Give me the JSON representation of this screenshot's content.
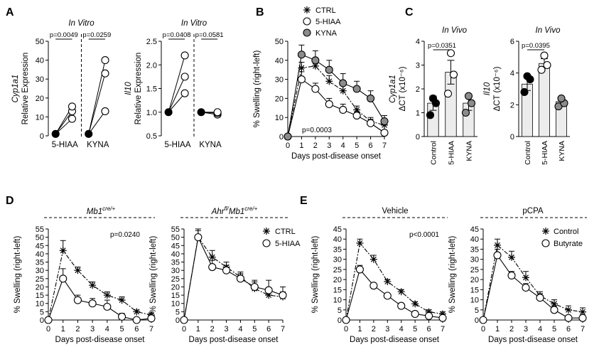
{
  "panel_letters": {
    "A": "A",
    "B": "B",
    "C": "C",
    "D": "D",
    "E": "E"
  },
  "chart_data": [
    {
      "id": "A1",
      "type": "scatter",
      "subtype": "paired-lines",
      "title": "In Vitro",
      "ylabel_italic": "Cyp1a1",
      "ylabel": "Relative Expression",
      "ylim": [
        0,
        50
      ],
      "yticks": [
        0,
        10,
        20,
        30,
        40,
        50
      ],
      "categories": [
        "5-HIAA",
        "KYNA"
      ],
      "groups": [
        {
          "category": "5-HIAA",
          "p": "p=0.0049",
          "before": [
            1,
            1,
            1
          ],
          "after": [
            9,
            13,
            15.5
          ]
        },
        {
          "category": "KYNA",
          "p": "p=0.0259",
          "before": [
            1,
            1,
            1
          ],
          "after": [
            13,
            33,
            40
          ]
        }
      ],
      "divider": "dashed"
    },
    {
      "id": "A2",
      "type": "scatter",
      "subtype": "paired-lines",
      "title": "In Vitro",
      "ylabel_italic": "Il10",
      "ylabel": "Relative Expression",
      "ylim": [
        0.5,
        2.5
      ],
      "yticks": [
        0.5,
        1.0,
        1.5,
        2.0,
        2.5
      ],
      "ytick_labels": [
        "0.5",
        "1.0",
        "1.5",
        "2.0",
        "2.5"
      ],
      "categories": [
        "5-HIAA",
        "KYNA"
      ],
      "groups": [
        {
          "category": "5-HIAA",
          "p": "p=0.0408",
          "before": [
            1,
            1,
            1
          ],
          "after": [
            1.4,
            1.75,
            2.2
          ]
        },
        {
          "category": "KYNA",
          "p": "p=0.0581",
          "before": [
            1,
            1,
            1
          ],
          "after": [
            0.95,
            0.98,
            1.0
          ]
        }
      ],
      "divider": "dashed"
    },
    {
      "id": "B",
      "type": "line",
      "xlabel": "Days post-disease onset",
      "ylabel": "% Swelling (right-left)",
      "xlim": [
        0,
        7
      ],
      "ylim": [
        0,
        50
      ],
      "xticks": [
        0,
        1,
        2,
        3,
        4,
        5,
        6,
        7
      ],
      "yticks": [
        0,
        10,
        20,
        30,
        40,
        50
      ],
      "annotation": "p=0.0003",
      "legend": [
        "CTRL",
        "5-HIAA",
        "KYNA"
      ],
      "legend_position": "top-right",
      "series": [
        {
          "name": "CTRL",
          "marker": "asterisk",
          "line": "dashed",
          "values": [
            0,
            36,
            37,
            29,
            24,
            14,
            8,
            6
          ],
          "err": [
            0,
            3,
            3,
            3,
            3,
            2,
            2,
            1
          ]
        },
        {
          "name": "5-HIAA",
          "marker": "open-circle",
          "line": "solid",
          "values": [
            0,
            30,
            25,
            17,
            14,
            11,
            7,
            2
          ],
          "err": [
            0,
            4,
            3,
            3,
            3,
            2,
            2,
            1
          ]
        },
        {
          "name": "KYNA",
          "marker": "grey-circle",
          "line": "solid",
          "values": [
            0,
            43,
            40,
            35,
            28,
            25,
            20,
            8
          ],
          "err": [
            0,
            5,
            5,
            5,
            5,
            4,
            4,
            3
          ]
        }
      ]
    },
    {
      "id": "C1",
      "type": "bar",
      "title": "In Vivo",
      "ylabel_italic": "Cyp1a1",
      "ylabel": "ΔCT (x10⁻⁶)",
      "ylim": [
        0,
        4
      ],
      "yticks": [
        0,
        1,
        2,
        3,
        4
      ],
      "categories": [
        "Control",
        "5-HIAA",
        "KYNA"
      ],
      "values": [
        1.4,
        2.7,
        1.4
      ],
      "err": [
        0.3,
        0.5,
        0.3
      ],
      "points": [
        [
          0.9,
          1.4,
          1.6
        ],
        [
          1.8,
          2.6,
          3.5
        ],
        [
          1.0,
          1.4,
          1.7
        ]
      ],
      "point_style": [
        "filled",
        "open",
        "grey"
      ],
      "bracket": {
        "from": "Control",
        "to": "5-HIAA",
        "p": "p=0.0351"
      }
    },
    {
      "id": "C2",
      "type": "bar",
      "title": "In Vivo",
      "ylabel_italic": "Il10",
      "ylabel": "ΔCT (x10⁻⁶)",
      "ylim": [
        0,
        6
      ],
      "yticks": [
        0,
        2,
        4,
        6
      ],
      "categories": [
        "Control",
        "5-HIAA",
        "KYNA"
      ],
      "values": [
        3.3,
        4.6,
        2.2
      ],
      "err": [
        0.4,
        0.3,
        0.2
      ],
      "points": [
        [
          2.8,
          3.6,
          3.8
        ],
        [
          4.2,
          4.5,
          5.1
        ],
        [
          1.9,
          2.1,
          2.4
        ]
      ],
      "point_style": [
        "filled",
        "open",
        "grey"
      ],
      "bracket": {
        "from": "Control",
        "to": "5-HIAA",
        "p": "p=0.0395"
      }
    },
    {
      "id": "D1",
      "type": "line",
      "header_base": "Mb1",
      "header_sup": "cre/+",
      "xlabel": "Days post-disease onset",
      "ylabel": "% Swelling (right-left)",
      "xlim": [
        0,
        7
      ],
      "ylim": [
        0,
        55
      ],
      "xticks": [
        0,
        1,
        2,
        3,
        4,
        5,
        6,
        7
      ],
      "yticks": [
        0,
        5,
        10,
        15,
        20,
        25,
        30,
        35,
        40,
        45,
        50,
        55
      ],
      "annotation": "p=0.0240",
      "series": [
        {
          "name": "CTRL",
          "marker": "asterisk",
          "line": "dashed",
          "values": [
            0,
            42,
            30,
            21,
            15,
            12,
            5,
            3
          ],
          "err": [
            0,
            6,
            2,
            2,
            2,
            2,
            1,
            1
          ]
        },
        {
          "name": "5-HIAA",
          "marker": "open-circle",
          "line": "solid",
          "values": [
            0,
            25,
            12,
            10,
            8,
            2,
            0,
            1
          ],
          "err": [
            0,
            6,
            3,
            3,
            4,
            2,
            1,
            1
          ]
        }
      ]
    },
    {
      "id": "D2",
      "type": "line",
      "header_base": "Ahr",
      "header_sup1": "fl/",
      "header_base2": "Mb1",
      "header_sup2": "cre/+",
      "xlabel": "Days post-disease onset",
      "ylabel": "% Swelling (right-left)",
      "xlim": [
        0,
        7
      ],
      "ylim": [
        0,
        55
      ],
      "xticks": [
        0,
        1,
        2,
        3,
        4,
        5,
        6,
        7
      ],
      "yticks": [
        0,
        5,
        10,
        15,
        20,
        25,
        30,
        35,
        40,
        45,
        50,
        55
      ],
      "legend": [
        "CTRL",
        "5-HIAA"
      ],
      "legend_position": "right",
      "series": [
        {
          "name": "CTRL",
          "marker": "asterisk",
          "line": "dashed",
          "values": [
            0,
            50,
            38,
            32,
            26,
            19,
            15,
            14
          ],
          "err": [
            0,
            4,
            4,
            3,
            3,
            4,
            3,
            3
          ]
        },
        {
          "name": "5-HIAA",
          "marker": "open-circle",
          "line": "solid",
          "values": [
            0,
            50,
            32,
            30,
            25,
            20,
            18,
            15
          ],
          "err": [
            0,
            5,
            4,
            3,
            3,
            4,
            6,
            5
          ]
        }
      ]
    },
    {
      "id": "E1",
      "type": "line",
      "header_base": "Vehicle",
      "xlabel": "Days post-disease onset",
      "ylabel": "% Swelling (right-left)",
      "xlim": [
        0,
        7
      ],
      "ylim": [
        0,
        45
      ],
      "xticks": [
        0,
        1,
        2,
        3,
        4,
        5,
        6,
        7
      ],
      "yticks": [
        0,
        5,
        10,
        15,
        20,
        25,
        30,
        35,
        40,
        45
      ],
      "annotation": "p<0.0001",
      "series": [
        {
          "name": "Control",
          "marker": "asterisk",
          "line": "dashed",
          "values": [
            0,
            38,
            30,
            19,
            14,
            8,
            4,
            3
          ],
          "err": [
            0,
            2,
            2,
            1,
            1,
            1,
            1,
            1
          ]
        },
        {
          "name": "Butyrate",
          "marker": "open-circle",
          "line": "solid",
          "values": [
            0,
            25,
            17,
            12,
            7,
            3,
            2,
            1
          ],
          "err": [
            0,
            2,
            1,
            1,
            1,
            1,
            1,
            1
          ]
        }
      ]
    },
    {
      "id": "E2",
      "type": "line",
      "header_base": "pCPA",
      "xlabel": "Days post-disease onset",
      "ylabel": "% Swelling (right-left)",
      "xlim": [
        0,
        7
      ],
      "ylim": [
        0,
        45
      ],
      "xticks": [
        0,
        1,
        2,
        3,
        4,
        5,
        6,
        7
      ],
      "yticks": [
        0,
        5,
        10,
        15,
        20,
        25,
        30,
        35,
        40,
        45
      ],
      "legend": [
        "Control",
        "Butyrate"
      ],
      "legend_position": "top-right",
      "series": [
        {
          "name": "Control",
          "marker": "asterisk",
          "line": "dashed",
          "values": [
            0,
            37,
            31,
            21,
            12,
            8,
            5,
            4
          ],
          "err": [
            0,
            3,
            3,
            3,
            2,
            2,
            2,
            2
          ]
        },
        {
          "name": "Butyrate",
          "marker": "open-circle",
          "line": "solid",
          "values": [
            0,
            32,
            22,
            16,
            11,
            5,
            1,
            1
          ],
          "err": [
            0,
            3,
            2,
            2,
            2,
            2,
            1,
            1
          ]
        }
      ]
    }
  ]
}
